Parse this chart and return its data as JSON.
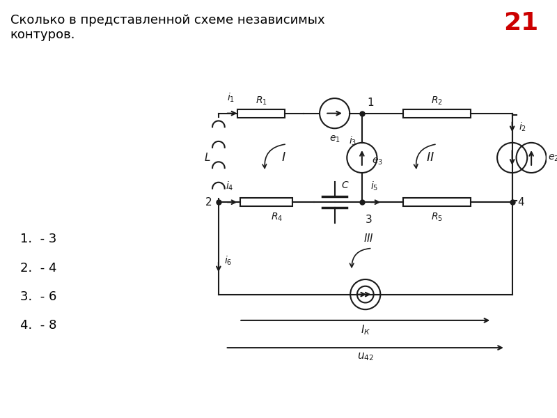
{
  "title_number": "21",
  "title_color": "#cc0000",
  "question_text": "Сколько в представленной схеме независимых\nконтуров.",
  "answers": [
    "1.  - 3",
    "2.  - 4",
    "3.  - 6",
    "4.  - 8"
  ],
  "background_color": "#ffffff",
  "line_color": "#1a1a1a",
  "figsize": [
    8.0,
    6.0
  ],
  "dpi": 100
}
